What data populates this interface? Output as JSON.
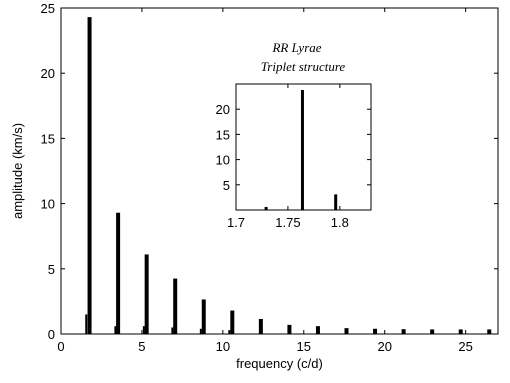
{
  "chart_data": [
    {
      "type": "bar",
      "xlabel": "frequency (c/d)",
      "ylabel": "amplitude (km/s)",
      "xlim": [
        0,
        27
      ],
      "ylim": [
        0,
        25
      ],
      "xticks": [
        "0",
        "5",
        "10",
        "15",
        "20",
        "25"
      ],
      "yticks": [
        "0",
        "5",
        "10",
        "15",
        "20",
        "25"
      ],
      "grid": false,
      "series": [
        {
          "x": [
            1.764,
            3.528,
            5.292,
            7.056,
            8.82,
            10.584,
            12.348,
            14.112,
            15.876,
            17.64,
            19.404,
            21.168,
            22.932,
            24.696,
            26.46
          ],
          "values": [
            24.3,
            9.3,
            6.1,
            4.25,
            2.65,
            1.8,
            1.15,
            0.7,
            0.6,
            0.45,
            0.4,
            0.37,
            0.35,
            0.35,
            0.35
          ]
        },
        {
          "x": [
            1.56,
            1.8,
            3.36,
            3.58,
            5.12,
            5.34,
            6.88,
            7.1,
            8.64,
            8.86,
            10.4,
            10.62
          ],
          "values": [
            1.5,
            3.1,
            0.6,
            1.2,
            0.6,
            1.0,
            0.5,
            0.7,
            0.4,
            0.5,
            0.3,
            0.35
          ]
        }
      ]
    },
    {
      "type": "bar",
      "title": "RR Lyrae\nTriplet structure",
      "xlim": [
        1.7,
        1.83
      ],
      "ylim": [
        0,
        25
      ],
      "xticks": [
        "1.7",
        "1.75",
        "1.8"
      ],
      "yticks": [
        "5",
        "10",
        "15",
        "20"
      ],
      "series": [
        {
          "x": [
            1.729,
            1.764,
            1.796
          ],
          "values": [
            0.6,
            23.8,
            3.1
          ]
        }
      ]
    }
  ],
  "inset_title_line1": "RR Lyrae",
  "inset_title_line2": "Triplet structure"
}
